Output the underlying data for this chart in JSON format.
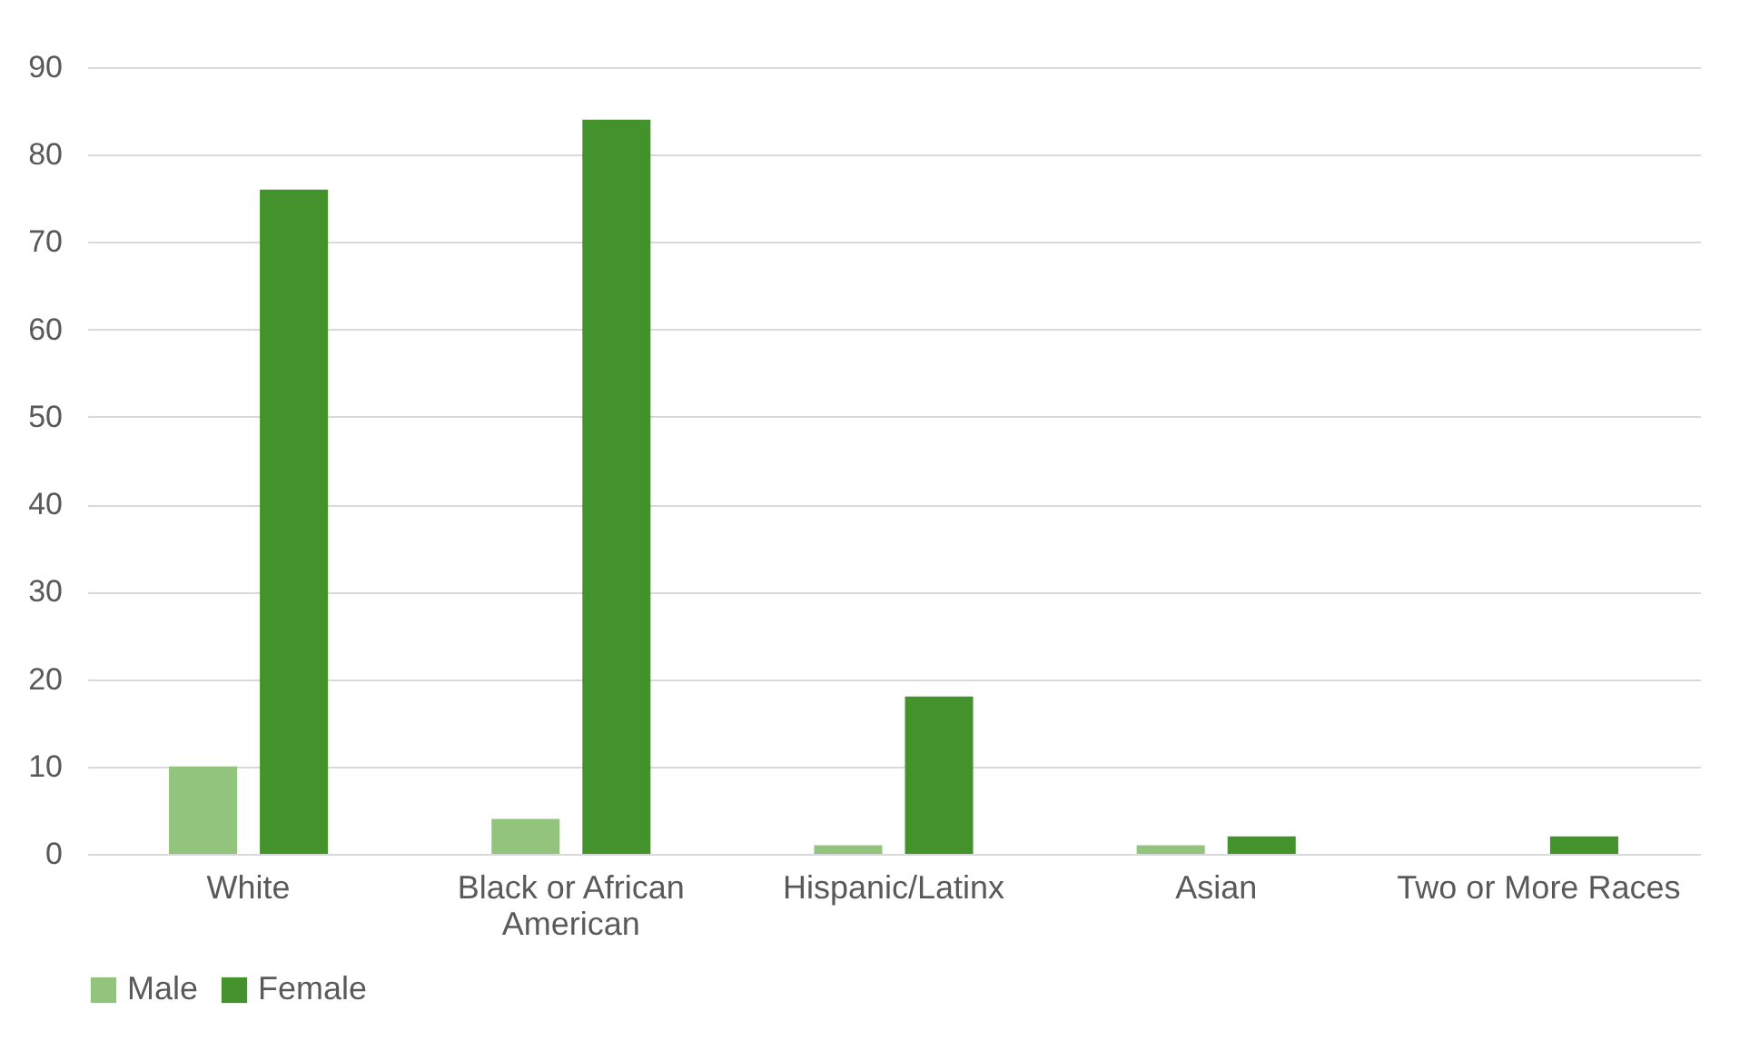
{
  "chart_data": {
    "type": "bar",
    "categories": [
      "White",
      "Black or African American",
      "Hispanic/Latinx",
      "Asian",
      "Two or More Races"
    ],
    "series": [
      {
        "name": "Male",
        "color": "#93c47d",
        "values": [
          10,
          4,
          1,
          1,
          0
        ]
      },
      {
        "name": "Female",
        "color": "#43922c",
        "values": [
          76,
          84,
          18,
          2,
          2
        ]
      }
    ],
    "ylim": [
      0,
      90
    ],
    "yticks": [
      0,
      10,
      20,
      30,
      40,
      50,
      60,
      70,
      80,
      90
    ],
    "grid": "y",
    "legend": "bottom"
  }
}
